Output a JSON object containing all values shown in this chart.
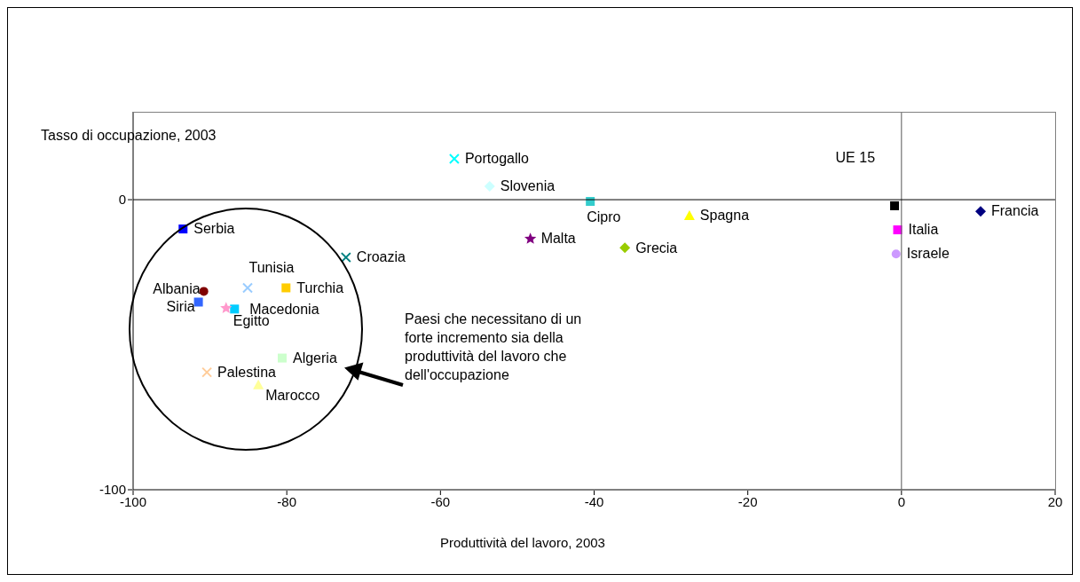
{
  "chart_data": {
    "type": "scatter",
    "xlabel": "Produttività del lavoro, 2003",
    "ylabel": "Tasso di occupazione, 2003",
    "xlim": [
      -100,
      20
    ],
    "xticks": [
      -100,
      -80,
      -60,
      -40,
      -20,
      0,
      20
    ],
    "ylim": [
      -100,
      30
    ],
    "yticks": [
      -100,
      0
    ],
    "grid": false,
    "legend": false,
    "ref_lines": [
      {
        "axis": "x",
        "value": 0,
        "color": "#555555"
      },
      {
        "axis": "y",
        "value": 0,
        "color": "#000000"
      }
    ],
    "annotations": [
      "Paesi che necessitano di un forte incremento sia della produttività del lavoro che dell'occupazione"
    ],
    "series": [
      {
        "name": "Portogallo",
        "color": "#00ffff",
        "marker": "cross",
        "x": [
          -58.2
        ],
        "values": [
          14.1
        ]
      },
      {
        "name": "Slovenia",
        "color": "#ccffff",
        "marker": "diamond",
        "x": [
          -53.6
        ],
        "values": [
          4.6
        ]
      },
      {
        "name": "Cipro",
        "color": "#33cccc",
        "marker": "square",
        "x": [
          -40.5
        ],
        "values": [
          -0.6
        ]
      },
      {
        "name": "Spagna",
        "color": "#ffff00",
        "marker": "triangle",
        "x": [
          -27.6
        ],
        "values": [
          -5.5
        ]
      },
      {
        "name": "Malta",
        "color": "#800080",
        "marker": "star",
        "x": [
          -48.3
        ],
        "values": [
          -13.5
        ]
      },
      {
        "name": "Grecia",
        "color": "#99cc00",
        "marker": "diamond",
        "x": [
          -36.0
        ],
        "values": [
          -16.6
        ]
      },
      {
        "name": "UE 15",
        "color": "#000000",
        "marker": "square",
        "x": [
          -0.9
        ],
        "values": [
          -2.1
        ]
      },
      {
        "name": "Francia",
        "color": "#000080",
        "marker": "diamond",
        "x": [
          10.3
        ],
        "values": [
          -4.0
        ]
      },
      {
        "name": "Italia",
        "color": "#ff00ff",
        "marker": "square",
        "x": [
          -0.5
        ],
        "values": [
          -10.4
        ]
      },
      {
        "name": "Israele",
        "color": "#cc99ff",
        "marker": "circle",
        "x": [
          -0.7
        ],
        "values": [
          -18.7
        ]
      },
      {
        "name": "Serbia",
        "color": "#0000ff",
        "marker": "square",
        "x": [
          -93.5
        ],
        "values": [
          -10.1
        ]
      },
      {
        "name": "Croazia",
        "color": "#008080",
        "marker": "cross",
        "x": [
          -72.3
        ],
        "values": [
          -19.9
        ]
      },
      {
        "name": "Albania",
        "color": "#800000",
        "marker": "circle",
        "x": [
          -90.8
        ],
        "values": [
          -31.6
        ]
      },
      {
        "name": "Tunisia",
        "color": "#99ccff",
        "marker": "cross",
        "x": [
          -85.1
        ],
        "values": [
          -30.4
        ]
      },
      {
        "name": "Turchia",
        "color": "#ffcc00",
        "marker": "square",
        "x": [
          -80.1
        ],
        "values": [
          -30.4
        ]
      },
      {
        "name": "Siria",
        "color": "#3366ff",
        "marker": "square",
        "x": [
          -91.5
        ],
        "values": [
          -35.3
        ]
      },
      {
        "name": "Macedonia",
        "color": "#00ccff",
        "marker": "square",
        "x": [
          -86.8
        ],
        "values": [
          -37.7
        ]
      },
      {
        "name": "Egitto",
        "color": "#ff99cc",
        "marker": "star",
        "x": [
          -87.9
        ],
        "values": [
          -37.4
        ]
      },
      {
        "name": "Algeria",
        "color": "#ccffcc",
        "marker": "square",
        "x": [
          -80.6
        ],
        "values": [
          -54.6
        ]
      },
      {
        "name": "Palestina",
        "color": "#ffcc99",
        "marker": "cross",
        "x": [
          -90.4
        ],
        "values": [
          -59.5
        ]
      },
      {
        "name": "Marocco",
        "color": "#ffff99",
        "marker": "triangle",
        "x": [
          -83.7
        ],
        "values": [
          -63.8
        ]
      }
    ]
  }
}
